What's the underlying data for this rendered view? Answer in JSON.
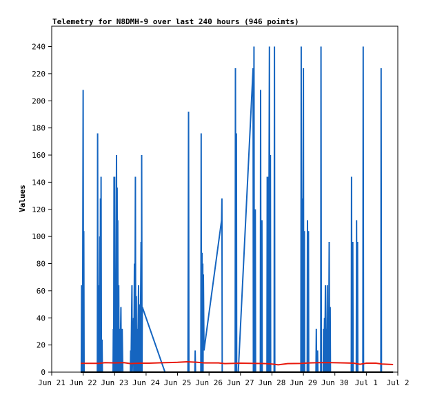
{
  "chart_data": {
    "type": "line",
    "title": "Telemetry for N8DMH-9 over last 240 hours (946 points)",
    "xlabel": "",
    "ylabel": "Values",
    "x_unit": "day of period (0 = Jun 21 00:00)",
    "xlim": [
      0,
      11
    ],
    "ylim": [
      0,
      255
    ],
    "grid": false,
    "legend": "none",
    "x_ticks": [
      {
        "x": 0,
        "label": "Jun 21"
      },
      {
        "x": 1,
        "label": "Jun 22"
      },
      {
        "x": 2,
        "label": "Jun 23"
      },
      {
        "x": 3,
        "label": "Jun 24"
      },
      {
        "x": 4,
        "label": "Jun 25"
      },
      {
        "x": 5,
        "label": "Jun 26"
      },
      {
        "x": 6,
        "label": "Jun 27"
      },
      {
        "x": 7,
        "label": "Jun 28"
      },
      {
        "x": 8,
        "label": "Jun 29"
      },
      {
        "x": 9,
        "label": "Jun 30"
      },
      {
        "x": 10,
        "label": "Jul 1"
      },
      {
        "x": 11,
        "label": "Jul 2"
      }
    ],
    "y_ticks": [
      0,
      20,
      40,
      60,
      80,
      100,
      120,
      140,
      160,
      180,
      200,
      220,
      240
    ],
    "series": [
      {
        "name": "",
        "color": "#1565c0",
        "points": [
          [
            0.94,
            0
          ],
          [
            0.95,
            64
          ],
          [
            0.96,
            0
          ],
          [
            0.97,
            32
          ],
          [
            0.98,
            0
          ],
          [
            1.0,
            208
          ],
          [
            1.01,
            0
          ],
          [
            1.02,
            104
          ],
          [
            1.03,
            0
          ],
          [
            1.45,
            0
          ],
          [
            1.46,
            176
          ],
          [
            1.47,
            0
          ],
          [
            1.5,
            64
          ],
          [
            1.51,
            0
          ],
          [
            1.53,
            100
          ],
          [
            1.54,
            0
          ],
          [
            1.55,
            128
          ],
          [
            1.56,
            0
          ],
          [
            1.57,
            144
          ],
          [
            1.58,
            0
          ],
          [
            1.6,
            24
          ],
          [
            1.61,
            0
          ],
          [
            1.95,
            0
          ],
          [
            1.96,
            32
          ],
          [
            1.97,
            0
          ],
          [
            1.98,
            144
          ],
          [
            1.99,
            0
          ],
          [
            2.0,
            144
          ],
          [
            2.01,
            0
          ],
          [
            2.03,
            48
          ],
          [
            2.04,
            0
          ],
          [
            2.06,
            160
          ],
          [
            2.07,
            0
          ],
          [
            2.08,
            136
          ],
          [
            2.09,
            0
          ],
          [
            2.1,
            112
          ],
          [
            2.11,
            0
          ],
          [
            2.13,
            64
          ],
          [
            2.14,
            0
          ],
          [
            2.16,
            32
          ],
          [
            2.17,
            0
          ],
          [
            2.2,
            48
          ],
          [
            2.21,
            0
          ],
          [
            2.24,
            32
          ],
          [
            2.26,
            0
          ],
          [
            2.28,
            0
          ],
          [
            2.5,
            0
          ],
          [
            2.51,
            16
          ],
          [
            2.52,
            0
          ],
          [
            2.55,
            64
          ],
          [
            2.56,
            0
          ],
          [
            2.6,
            40
          ],
          [
            2.61,
            0
          ],
          [
            2.63,
            80
          ],
          [
            2.64,
            0
          ],
          [
            2.66,
            144
          ],
          [
            2.67,
            0
          ],
          [
            2.69,
            56
          ],
          [
            2.7,
            0
          ],
          [
            2.72,
            32
          ],
          [
            2.73,
            0
          ],
          [
            2.76,
            64
          ],
          [
            2.77,
            0
          ],
          [
            2.8,
            50
          ],
          [
            2.81,
            0
          ],
          [
            2.84,
            96
          ],
          [
            2.85,
            0
          ],
          [
            2.86,
            160
          ],
          [
            2.87,
            0
          ],
          [
            2.88,
            48
          ],
          [
            3.6,
            0
          ],
          [
            4.33,
            0
          ],
          [
            4.35,
            192
          ],
          [
            4.36,
            0
          ],
          [
            4.38,
            0
          ],
          [
            4.55,
            0
          ],
          [
            4.56,
            16
          ],
          [
            4.57,
            0
          ],
          [
            4.74,
            0
          ],
          [
            4.75,
            176
          ],
          [
            4.76,
            0
          ],
          [
            4.78,
            88
          ],
          [
            4.79,
            0
          ],
          [
            4.8,
            80
          ],
          [
            4.81,
            0
          ],
          [
            4.82,
            72
          ],
          [
            4.84,
            16
          ],
          [
            5.4,
            112
          ],
          [
            5.41,
            128
          ],
          [
            5.42,
            0
          ],
          [
            5.44,
            0
          ],
          [
            5.83,
            0
          ],
          [
            5.84,
            224
          ],
          [
            5.85,
            0
          ],
          [
            5.87,
            176
          ],
          [
            5.88,
            0
          ],
          [
            5.92,
            0
          ],
          [
            5.93,
            0
          ],
          [
            6.4,
            224
          ],
          [
            6.41,
            0
          ],
          [
            6.43,
            240
          ],
          [
            6.44,
            0
          ],
          [
            6.47,
            120
          ],
          [
            6.48,
            0
          ],
          [
            6.63,
            0
          ],
          [
            6.64,
            208
          ],
          [
            6.65,
            0
          ],
          [
            6.68,
            112
          ],
          [
            6.69,
            0
          ],
          [
            6.84,
            0
          ],
          [
            6.85,
            144
          ],
          [
            6.86,
            0
          ],
          [
            6.88,
            144
          ],
          [
            6.89,
            0
          ],
          [
            6.92,
            240
          ],
          [
            6.93,
            0
          ],
          [
            6.95,
            160
          ],
          [
            6.96,
            0
          ],
          [
            7.07,
            0
          ],
          [
            7.08,
            240
          ],
          [
            7.09,
            0
          ],
          [
            7.11,
            0
          ],
          [
            7.92,
            0
          ],
          [
            7.93,
            240
          ],
          [
            7.94,
            0
          ],
          [
            7.96,
            128
          ],
          [
            7.97,
            0
          ],
          [
            8.0,
            224
          ],
          [
            8.01,
            0
          ],
          [
            8.03,
            104
          ],
          [
            8.04,
            0
          ],
          [
            8.12,
            0
          ],
          [
            8.13,
            112
          ],
          [
            8.14,
            0
          ],
          [
            8.16,
            104
          ],
          [
            8.17,
            0
          ],
          [
            8.19,
            0
          ],
          [
            8.4,
            0
          ],
          [
            8.41,
            32
          ],
          [
            8.42,
            0
          ],
          [
            8.45,
            16
          ],
          [
            8.46,
            0
          ],
          [
            8.55,
            0
          ],
          [
            8.56,
            240
          ],
          [
            8.57,
            0
          ],
          [
            8.63,
            0
          ],
          [
            8.64,
            32
          ],
          [
            8.65,
            0
          ],
          [
            8.67,
            40
          ],
          [
            8.68,
            0
          ],
          [
            8.7,
            64
          ],
          [
            8.71,
            0
          ],
          [
            8.73,
            32
          ],
          [
            8.74,
            0
          ],
          [
            8.76,
            64
          ],
          [
            8.77,
            0
          ],
          [
            8.79,
            40
          ],
          [
            8.8,
            0
          ],
          [
            8.82,
            96
          ],
          [
            8.83,
            0
          ],
          [
            8.85,
            48
          ],
          [
            8.86,
            0
          ],
          [
            9.52,
            0
          ],
          [
            9.53,
            144
          ],
          [
            9.54,
            0
          ],
          [
            9.57,
            96
          ],
          [
            9.58,
            0
          ],
          [
            9.68,
            0
          ],
          [
            9.69,
            112
          ],
          [
            9.7,
            0
          ],
          [
            9.72,
            96
          ],
          [
            9.73,
            0
          ],
          [
            9.89,
            0
          ],
          [
            9.9,
            240
          ],
          [
            9.91,
            0
          ],
          [
            10.46,
            0
          ],
          [
            10.47,
            224
          ],
          [
            10.48,
            0
          ]
        ]
      },
      {
        "name": "",
        "color": "#e8190c",
        "points": [
          [
            0.92,
            6.5
          ],
          [
            1.5,
            6.5
          ],
          [
            1.7,
            7
          ],
          [
            2.0,
            6.8
          ],
          [
            2.3,
            7
          ],
          [
            2.5,
            6.3
          ],
          [
            2.8,
            6.6
          ],
          [
            3.1,
            6.6
          ],
          [
            3.5,
            6.9
          ],
          [
            4.0,
            7.2
          ],
          [
            4.3,
            7.6
          ],
          [
            4.6,
            7.3
          ],
          [
            4.85,
            6.8
          ],
          [
            5.3,
            6.8
          ],
          [
            5.5,
            6.3
          ],
          [
            6.0,
            6.6
          ],
          [
            6.5,
            6.4
          ],
          [
            6.8,
            6.3
          ],
          [
            7.0,
            6.0
          ],
          [
            7.2,
            5.4
          ],
          [
            7.5,
            6.3
          ],
          [
            7.9,
            6.4
          ],
          [
            8.2,
            6.8
          ],
          [
            8.5,
            7.0
          ],
          [
            8.9,
            7.0
          ],
          [
            9.3,
            6.8
          ],
          [
            9.6,
            6.6
          ],
          [
            9.8,
            5.8
          ],
          [
            10.0,
            6.6
          ],
          [
            10.3,
            6.6
          ],
          [
            10.5,
            6.0
          ],
          [
            10.85,
            5.6
          ]
        ]
      },
      {
        "name": "",
        "color": "#000000",
        "points": [
          [
            0.92,
            0
          ],
          [
            10.85,
            0
          ]
        ]
      }
    ]
  }
}
